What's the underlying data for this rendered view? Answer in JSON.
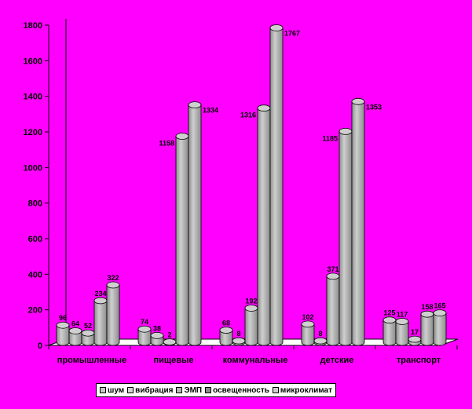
{
  "chart_data": {
    "type": "bar",
    "categories": [
      "промышленные",
      "пищевые",
      "коммунальные",
      "детские",
      "транспорт"
    ],
    "series": [
      {
        "name": "шум",
        "values": [
          96,
          74,
          68,
          102,
          125
        ],
        "labels": [
          "96",
          "74",
          "68",
          "102",
          "125"
        ]
      },
      {
        "name": "вибрация",
        "values": [
          64,
          38,
          8,
          8,
          117
        ],
        "labels": [
          "64",
          "38",
          "8",
          "8",
          "117"
        ]
      },
      {
        "name": "ЭМП",
        "values": [
          52,
          2,
          192,
          371,
          17
        ],
        "labels": [
          "52",
          "2",
          "192",
          "371",
          "17"
        ]
      },
      {
        "name": "освещенность",
        "values": [
          234,
          1158,
          1316,
          1185,
          158
        ],
        "labels": [
          "234",
          "1158",
          "1316",
          "1185",
          "158"
        ]
      },
      {
        "name": "микроклимат",
        "values": [
          322,
          1334,
          1767,
          1353,
          165
        ],
        "labels": [
          "322",
          "1334",
          "1767",
          "1353",
          "165"
        ]
      }
    ],
    "ylim": [
      0,
      1800
    ],
    "yticks": [
      0,
      200,
      400,
      600,
      800,
      1000,
      1200,
      1400,
      1600,
      1800
    ],
    "ytick_labels": [
      "0",
      "200",
      "400",
      "600",
      "800",
      "1000",
      "1200",
      "1400",
      "1600",
      "1800"
    ],
    "grid": false,
    "legend_position": "bottom",
    "style": "3d-cylinder",
    "colors": {
      "background": "#ff00ff",
      "bar_light": "#cfcfcf",
      "bar_dark": "#8c8c8c",
      "outline": "#000000"
    }
  },
  "legend": {
    "items": [
      {
        "label": "шум",
        "color": "#c8c8c8"
      },
      {
        "label": "вибрация",
        "color": "#d4d4d4"
      },
      {
        "label": "ЭМП",
        "color": "#b8b8b8"
      },
      {
        "label": "освещенность",
        "color": "#8c8c8c"
      },
      {
        "label": "микроклимат",
        "color": "#cfcfcf"
      }
    ]
  }
}
